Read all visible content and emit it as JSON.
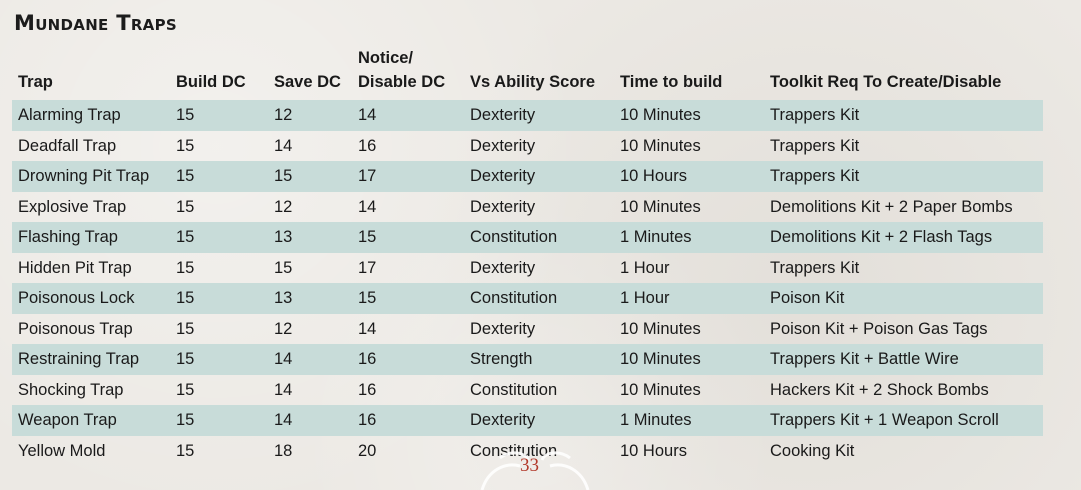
{
  "title": "Mundane Traps",
  "table": {
    "headers": [
      "Trap",
      "Build DC",
      "Save DC",
      "Notice/ Disable DC",
      "Vs Ability Score",
      "Time to build",
      "Toolkit Req To Create/Disable"
    ],
    "header_notice_line1": "Notice/",
    "header_notice_line2": "Disable DC",
    "rows": [
      [
        "Alarming Trap",
        "15",
        "12",
        "14",
        "Dexterity",
        "10 Minutes",
        "Trappers Kit"
      ],
      [
        "Deadfall Trap",
        "15",
        "14",
        "16",
        "Dexterity",
        "10 Minutes",
        "Trappers Kit"
      ],
      [
        "Drowning Pit Trap",
        "15",
        "15",
        "17",
        "Dexterity",
        "10 Hours",
        "Trappers Kit"
      ],
      [
        "Explosive Trap",
        "15",
        "12",
        "14",
        "Dexterity",
        "10 Minutes",
        "Demolitions Kit + 2 Paper Bombs"
      ],
      [
        "Flashing Trap",
        "15",
        "13",
        "15",
        "Constitution",
        "1 Minutes",
        "Demolitions Kit + 2 Flash Tags"
      ],
      [
        "Hidden Pit Trap",
        "15",
        "15",
        "17",
        "Dexterity",
        "1 Hour",
        "Trappers Kit"
      ],
      [
        "Poisonous Lock",
        "15",
        "13",
        "15",
        "Constitution",
        "1 Hour",
        "Poison Kit"
      ],
      [
        "Poisonous Trap",
        "15",
        "12",
        "14",
        "Dexterity",
        "10 Minutes",
        "Poison Kit + Poison Gas Tags"
      ],
      [
        "Restraining Trap",
        "15",
        "14",
        "16",
        "Strength",
        "10 Minutes",
        "Trappers Kit + Battle Wire"
      ],
      [
        "Shocking Trap",
        "15",
        "14",
        "16",
        "Constitution",
        "10 Minutes",
        "Hackers Kit + 2 Shock Bombs"
      ],
      [
        "Weapon Trap",
        "15",
        "14",
        "16",
        "Dexterity",
        "1 Minutes",
        "Trappers Kit + 1 Weapon Scroll"
      ],
      [
        "Yellow Mold",
        "15",
        "18",
        "20",
        "Constitution",
        "10 Hours",
        "Cooking Kit"
      ]
    ]
  },
  "page_number": "33",
  "colors": {
    "stripe": "#c8dcd9",
    "page_number": "#b23a2c",
    "background": "#ece9e4"
  }
}
